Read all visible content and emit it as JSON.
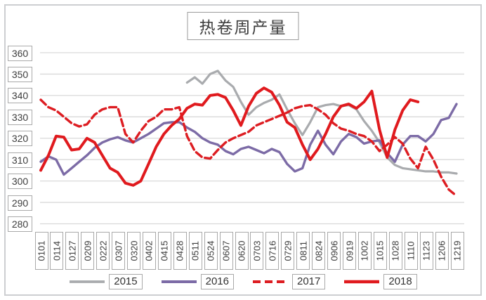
{
  "chart": {
    "title": "热卷周产量"
  },
  "chart_data": {
    "type": "line",
    "title": "热卷周产量",
    "xlabel": "",
    "ylabel": "",
    "ylim": [
      280,
      360
    ],
    "y_ticks": [
      360,
      350,
      340,
      330,
      320,
      310,
      300,
      290,
      280
    ],
    "grid": "horizontal",
    "legend_position": "bottom",
    "points_per_label": 2,
    "x_labels": [
      "0101",
      "0114",
      "0127",
      "0209",
      "0222",
      "0307",
      "0320",
      "0402",
      "0415",
      "0428",
      "0511",
      "0524",
      "0607",
      "0620",
      "0703",
      "0716",
      "0729",
      "0811",
      "0824",
      "0906",
      "0919",
      "1002",
      "1015",
      "1028",
      "1110",
      "1123",
      "1206",
      "1219"
    ],
    "series": [
      {
        "name": "2015",
        "color": "#a9abae",
        "style": "solid",
        "width": 3.2,
        "values": [
          null,
          null,
          null,
          null,
          null,
          null,
          null,
          null,
          null,
          null,
          null,
          null,
          null,
          null,
          null,
          null,
          null,
          null,
          null,
          346,
          348.5,
          345.5,
          350,
          351.5,
          347,
          344,
          337,
          331,
          334.5,
          336.5,
          338,
          340.5,
          333.5,
          327,
          321.5,
          327.5,
          334.5,
          335.5,
          336,
          335,
          335.5,
          333.5,
          328,
          323.5,
          318,
          311,
          307.5,
          306,
          305.5,
          305,
          304.5,
          304.5,
          304,
          304,
          303.5
        ]
      },
      {
        "name": "2016",
        "color": "#7c6ba6",
        "style": "solid",
        "width": 3.4,
        "values": [
          309,
          311.5,
          310,
          303,
          306,
          309,
          312,
          315.5,
          318,
          319.5,
          320.5,
          319,
          318,
          320,
          322,
          324.5,
          327,
          327.5,
          327.5,
          325,
          323,
          320,
          318,
          317,
          314,
          312.5,
          315,
          316,
          314.5,
          313,
          315,
          313.5,
          308,
          304.5,
          306,
          317,
          323.5,
          317,
          312.5,
          318.5,
          322,
          320.5,
          317.5,
          318.5,
          319,
          313,
          309,
          317,
          321,
          321,
          318.5,
          322,
          328.5,
          329.5,
          336
        ]
      },
      {
        "name": "2017",
        "color": "#dd1d22",
        "style": "dashed",
        "width": 3.4,
        "values": [
          338,
          334.5,
          333,
          330,
          327,
          325.5,
          326.5,
          331,
          333.5,
          334.5,
          334.5,
          322,
          318,
          323.5,
          328,
          330,
          333.5,
          333.5,
          334.5,
          321,
          314,
          311,
          310.5,
          314.5,
          318,
          320,
          321.5,
          323,
          326,
          327.5,
          329,
          330.5,
          332,
          334,
          335,
          335.5,
          333.5,
          331,
          327,
          324.5,
          323.5,
          322,
          321,
          318.5,
          314,
          317,
          320.5,
          317.5,
          310.5,
          306,
          316,
          310,
          302,
          296,
          293
        ]
      },
      {
        "name": "2018",
        "color": "#e01a1e",
        "style": "solid",
        "width": 4,
        "values": [
          305,
          312,
          321,
          320.5,
          314.5,
          315,
          320,
          318,
          312,
          306,
          304,
          299,
          298,
          300,
          308,
          316,
          322,
          326,
          329,
          334,
          336,
          335.5,
          340,
          340.5,
          339,
          333,
          326,
          335,
          341,
          343.5,
          341.5,
          335.5,
          327.5,
          325,
          317,
          310,
          315,
          322,
          330,
          335,
          336,
          334,
          337,
          342,
          324,
          311,
          324,
          333,
          338,
          337,
          null,
          null,
          null,
          null,
          null
        ]
      }
    ]
  }
}
